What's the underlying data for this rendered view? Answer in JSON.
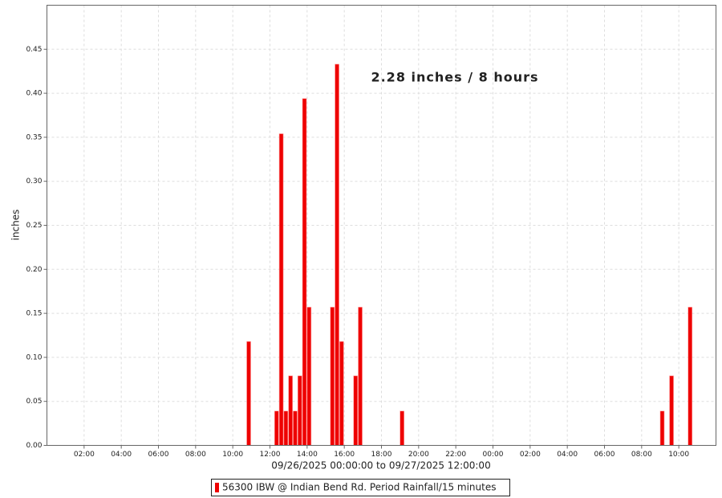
{
  "chart_data": {
    "type": "bar",
    "annotation": "2.28 inches / 8 hours",
    "ylabel": "inches",
    "xlabel": "09/26/2025 00:00:00 to 09/27/2025 12:00:00",
    "x": [
      10.75,
      12.25,
      12.5,
      12.75,
      13,
      13.25,
      13.5,
      13.75,
      14,
      15.25,
      15.5,
      15.75,
      16.5,
      16.75,
      19,
      33,
      33.5,
      34.5
    ],
    "series": [
      {
        "name": "56300 IBW @ Indian Bend Rd. Period Rainfall/15 minutes",
        "color": "#ee0000",
        "values": [
          0.118,
          0.039,
          0.354,
          0.039,
          0.079,
          0.039,
          0.079,
          0.394,
          0.157,
          0.157,
          0.433,
          0.118,
          0.079,
          0.157,
          0.039,
          0.039,
          0.079,
          0.157
        ]
      }
    ],
    "xlim": [
      0,
      36
    ],
    "xticks": [
      {
        "value": 2,
        "label": "02:00"
      },
      {
        "value": 4,
        "label": "04:00"
      },
      {
        "value": 6,
        "label": "06:00"
      },
      {
        "value": 8,
        "label": "08:00"
      },
      {
        "value": 10,
        "label": "10:00"
      },
      {
        "value": 12,
        "label": "12:00"
      },
      {
        "value": 14,
        "label": "14:00"
      },
      {
        "value": 16,
        "label": "16:00"
      },
      {
        "value": 18,
        "label": "18:00"
      },
      {
        "value": 20,
        "label": "20:00"
      },
      {
        "value": 22,
        "label": "22:00"
      },
      {
        "value": 24,
        "label": "00:00"
      },
      {
        "value": 26,
        "label": "02:00"
      },
      {
        "value": 28,
        "label": "04:00"
      },
      {
        "value": 30,
        "label": "06:00"
      },
      {
        "value": 32,
        "label": "08:00"
      },
      {
        "value": 34,
        "label": "10:00"
      }
    ],
    "ylim": [
      0,
      0.5
    ],
    "yticks": [
      {
        "value": 0,
        "label": "0.00"
      },
      {
        "value": 0.05,
        "label": "0.05"
      },
      {
        "value": 0.1,
        "label": "0.10"
      },
      {
        "value": 0.15,
        "label": "0.15"
      },
      {
        "value": 0.2,
        "label": "0.20"
      },
      {
        "value": 0.25,
        "label": "0.25"
      },
      {
        "value": 0.3,
        "label": "0.30"
      },
      {
        "value": 0.35,
        "label": "0.35"
      },
      {
        "value": 0.4,
        "label": "0.40"
      },
      {
        "value": 0.45,
        "label": "0.45"
      }
    ],
    "bar_width": 0.25,
    "grid": true
  }
}
